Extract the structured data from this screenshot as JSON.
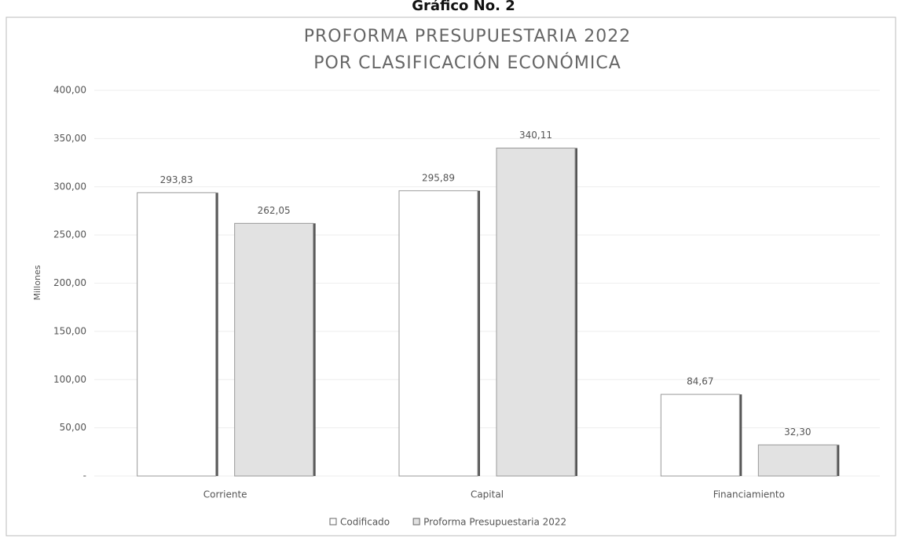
{
  "chart_data": {
    "type": "bar",
    "heading": "Gráfico No. 2",
    "title": "PROFORMA PRESUPUESTARIA 2022",
    "subtitle": "POR CLASIFICACIÓN ECONÓMICA",
    "y_label": "Millones",
    "categories": [
      "Corriente",
      "Capital",
      "Financiamiento"
    ],
    "series": [
      {
        "name": "Codificado",
        "color": "#ffffff",
        "values": [
          293.83,
          295.89,
          84.67
        ],
        "value_labels": [
          "293,83",
          "295,89",
          "84,67"
        ]
      },
      {
        "name": "Proforma Presupuestaria 2022",
        "color": "#e2e2e2",
        "values": [
          262.05,
          340.11,
          32.3
        ],
        "value_labels": [
          "262,05",
          "340,11",
          "32,30"
        ]
      }
    ],
    "ylim": [
      0,
      400
    ],
    "yticks": [
      {
        "value": 0,
        "label": "-"
      },
      {
        "value": 50,
        "label": "50,00"
      },
      {
        "value": 100,
        "label": "100,00"
      },
      {
        "value": 150,
        "label": "150,00"
      },
      {
        "value": 200,
        "label": "200,00"
      },
      {
        "value": 250,
        "label": "250,00"
      },
      {
        "value": 300,
        "label": "300,00"
      },
      {
        "value": 350,
        "label": "350,00"
      },
      {
        "value": 400,
        "label": "400,00"
      }
    ],
    "grid": true,
    "legend": "bottom"
  }
}
